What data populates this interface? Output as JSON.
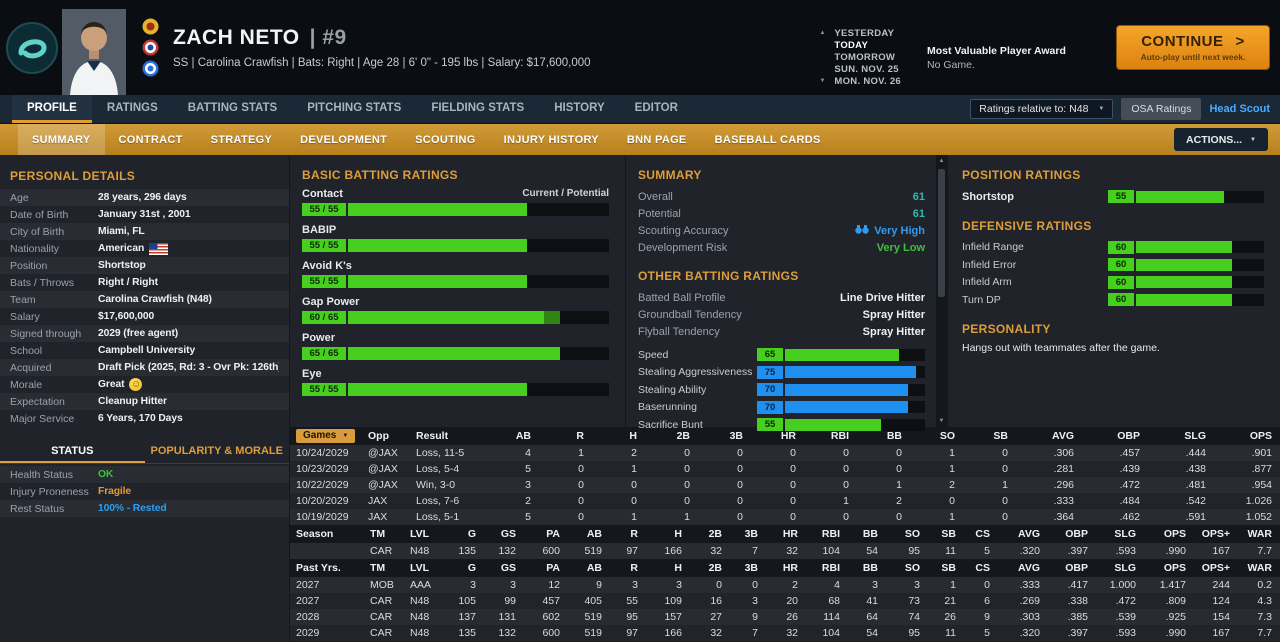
{
  "colors": {
    "accent": "#dd9d3a",
    "green": "#46cf1e",
    "blue": "#2090f0",
    "teal": "#2fb9ae"
  },
  "header": {
    "player_name": "ZACH NETO",
    "player_number": "|  #9",
    "player_info": "SS | Carolina Crawfish | Bats: Right | Age 28 | 6' 0\" - 195 lbs | Salary: $17,600,000",
    "dates": [
      "YESTERDAY",
      "TODAY",
      "TOMORROW",
      "SUN. NOV. 25",
      "MON. NOV. 26"
    ],
    "event_title": "Most Valuable Player Award",
    "event_subtitle": "No Game.",
    "continue_label": "CONTINUE",
    "continue_sub": "Auto-play until next week."
  },
  "nav": {
    "tabs": [
      "PROFILE",
      "RATINGS",
      "BATTING STATS",
      "PITCHING STATS",
      "FIELDING STATS",
      "HISTORY",
      "EDITOR"
    ],
    "active": "PROFILE",
    "ratings_relative_label": "Ratings relative to: N48",
    "osa_button": "OSA Ratings",
    "head_scout": "Head Scout"
  },
  "subnav": {
    "tabs": [
      "SUMMARY",
      "CONTRACT",
      "STRATEGY",
      "DEVELOPMENT",
      "SCOUTING",
      "INJURY HISTORY",
      "BNN PAGE",
      "BASEBALL CARDS"
    ],
    "active": "SUMMARY",
    "actions_label": "ACTIONS..."
  },
  "personal_details": {
    "title": "PERSONAL DETAILS",
    "rows": [
      {
        "label": "Age",
        "value": "28 years, 296 days"
      },
      {
        "label": "Date of Birth",
        "value": "January 31st , 2001"
      },
      {
        "label": "City of Birth",
        "value": "Miami, FL"
      },
      {
        "label": "Nationality",
        "value": "American",
        "icon": "us-flag"
      },
      {
        "label": "Position",
        "value": "Shortstop"
      },
      {
        "label": "Bats / Throws",
        "value": "Right / Right"
      },
      {
        "label": "Team",
        "value": "Carolina Crawfish (N48)"
      },
      {
        "label": "Salary",
        "value": "$17,600,000"
      },
      {
        "label": "Signed through",
        "value": "2029 (free agent)"
      },
      {
        "label": "School",
        "value": "Campbell University"
      },
      {
        "label": "Acquired",
        "value": "Draft Pick (2025, Rd: 3 - Ovr Pk: 126th)"
      },
      {
        "label": "Morale",
        "value": "Great",
        "icon": "smiley"
      },
      {
        "label": "Expectation",
        "value": "Cleanup Hitter"
      },
      {
        "label": "Major Service",
        "value": "6 Years, 170 Days"
      }
    ]
  },
  "status_panel": {
    "tabs": [
      "STATUS",
      "POPULARITY & MORALE"
    ],
    "active": "STATUS",
    "rows": [
      {
        "label": "Health Status",
        "value": "OK",
        "color": "#3ec13e"
      },
      {
        "label": "Injury Proneness",
        "value": "Fragile",
        "color": "#e39b34"
      },
      {
        "label": "Rest Status",
        "value": "100% - Rested",
        "color": "#2e9df0"
      }
    ]
  },
  "batting_ratings": {
    "title": "BASIC BATTING RATINGS",
    "scale_note": "Current / Potential",
    "items": [
      {
        "label": "Contact",
        "current": 55,
        "potential": 55
      },
      {
        "label": "BABIP",
        "current": 55,
        "potential": 55
      },
      {
        "label": "Avoid K's",
        "current": 55,
        "potential": 55
      },
      {
        "label": "Gap Power",
        "current": 60,
        "potential": 65
      },
      {
        "label": "Power",
        "current": 65,
        "potential": 65
      },
      {
        "label": "Eye",
        "current": 55,
        "potential": 55
      }
    ]
  },
  "summary_panel": {
    "title": "SUMMARY",
    "rows": [
      {
        "label": "Overall",
        "value": "61",
        "style": "teal"
      },
      {
        "label": "Potential",
        "value": "61",
        "style": "teal"
      },
      {
        "label": "Scouting Accuracy",
        "value": "Very High",
        "style": "blue",
        "icon": "binoculars"
      },
      {
        "label": "Development Risk",
        "value": "Very Low",
        "style": "green"
      }
    ],
    "other_title": "OTHER BATTING RATINGS",
    "other_rows": [
      {
        "label": "Batted Ball Profile",
        "value": "Line Drive Hitter"
      },
      {
        "label": "Groundball Tendency",
        "value": "Spray Hitter"
      },
      {
        "label": "Flyball Tendency",
        "value": "Spray Hitter"
      }
    ],
    "bars": [
      {
        "label": "Speed",
        "value": 65
      },
      {
        "label": "Stealing Aggressiveness",
        "value": 75
      },
      {
        "label": "Stealing Ability",
        "value": 70
      },
      {
        "label": "Baserunning",
        "value": 70
      },
      {
        "label": "Sacrifice Bunt",
        "value": 55
      }
    ]
  },
  "position_panel": {
    "title": "POSITION RATINGS",
    "positions": [
      {
        "label": "Shortstop",
        "value": 55
      }
    ],
    "defensive_title": "DEFENSIVE RATINGS",
    "defense": [
      {
        "label": "Infield Range",
        "value": 60
      },
      {
        "label": "Infield Error",
        "value": 60
      },
      {
        "label": "Infield Arm",
        "value": 60
      },
      {
        "label": "Turn DP",
        "value": 60
      }
    ],
    "personality_title": "PERSONALITY",
    "personality_text": "Hangs out with teammates after the game."
  },
  "game_log": {
    "columns": [
      "Games",
      "Opp",
      "Result",
      "AB",
      "R",
      "H",
      "2B",
      "3B",
      "HR",
      "RBI",
      "BB",
      "SO",
      "SB",
      "AVG",
      "OBP",
      "SLG",
      "OPS"
    ],
    "rows": [
      [
        "10/24/2029",
        "@JAX",
        "Loss, 11-5",
        "4",
        "1",
        "2",
        "0",
        "0",
        "0",
        "0",
        "0",
        "1",
        "0",
        ".306",
        ".457",
        ".444",
        ".901"
      ],
      [
        "10/23/2029",
        "@JAX",
        "Loss, 5-4",
        "5",
        "0",
        "1",
        "0",
        "0",
        "0",
        "0",
        "0",
        "1",
        "0",
        ".281",
        ".439",
        ".438",
        ".877"
      ],
      [
        "10/22/2029",
        "@JAX",
        "Win, 3-0",
        "3",
        "0",
        "0",
        "0",
        "0",
        "0",
        "0",
        "1",
        "2",
        "1",
        ".296",
        ".472",
        ".481",
        ".954"
      ],
      [
        "10/20/2029",
        "JAX",
        "Loss, 7-6",
        "2",
        "0",
        "0",
        "0",
        "0",
        "0",
        "1",
        "2",
        "0",
        "0",
        ".333",
        ".484",
        ".542",
        "1.026"
      ],
      [
        "10/19/2029",
        "JAX",
        "Loss, 5-1",
        "5",
        "0",
        "1",
        "1",
        "0",
        "0",
        "0",
        "0",
        "1",
        "0",
        ".364",
        ".462",
        ".591",
        "1.052"
      ]
    ]
  },
  "season_stats": {
    "columns": [
      "Season",
      "TM",
      "LVL",
      "G",
      "GS",
      "PA",
      "AB",
      "R",
      "H",
      "2B",
      "3B",
      "HR",
      "RBI",
      "BB",
      "SO",
      "SB",
      "CS",
      "AVG",
      "OBP",
      "SLG",
      "OPS",
      "OPS+",
      "WAR"
    ],
    "rows": [
      [
        "",
        "CAR",
        "N48",
        "135",
        "132",
        "600",
        "519",
        "97",
        "166",
        "32",
        "7",
        "32",
        "104",
        "54",
        "95",
        "11",
        "5",
        ".320",
        ".397",
        ".593",
        ".990",
        "167",
        "7.7"
      ]
    ]
  },
  "past_years": {
    "columns": [
      "Past Yrs.",
      "TM",
      "LVL",
      "G",
      "GS",
      "PA",
      "AB",
      "R",
      "H",
      "2B",
      "3B",
      "HR",
      "RBI",
      "BB",
      "SO",
      "SB",
      "CS",
      "AVG",
      "OBP",
      "SLG",
      "OPS",
      "OPS+",
      "WAR"
    ],
    "rows": [
      [
        "2027",
        "MOB",
        "AAA",
        "3",
        "3",
        "12",
        "9",
        "3",
        "3",
        "0",
        "0",
        "2",
        "4",
        "3",
        "3",
        "1",
        "0",
        ".333",
        ".417",
        "1.000",
        "1.417",
        "244",
        "0.2"
      ],
      [
        "2027",
        "CAR",
        "N48",
        "105",
        "99",
        "457",
        "405",
        "55",
        "109",
        "16",
        "3",
        "20",
        "68",
        "41",
        "73",
        "21",
        "6",
        ".269",
        ".338",
        ".472",
        ".809",
        "124",
        "4.3"
      ],
      [
        "2028",
        "CAR",
        "N48",
        "137",
        "131",
        "602",
        "519",
        "95",
        "157",
        "27",
        "9",
        "26",
        "114",
        "64",
        "74",
        "26",
        "9",
        ".303",
        ".385",
        ".539",
        ".925",
        "154",
        "7.3"
      ],
      [
        "2029",
        "CAR",
        "N48",
        "135",
        "132",
        "600",
        "519",
        "97",
        "166",
        "32",
        "7",
        "32",
        "104",
        "54",
        "95",
        "11",
        "5",
        ".320",
        ".397",
        ".593",
        ".990",
        "167",
        "7.7"
      ]
    ]
  }
}
